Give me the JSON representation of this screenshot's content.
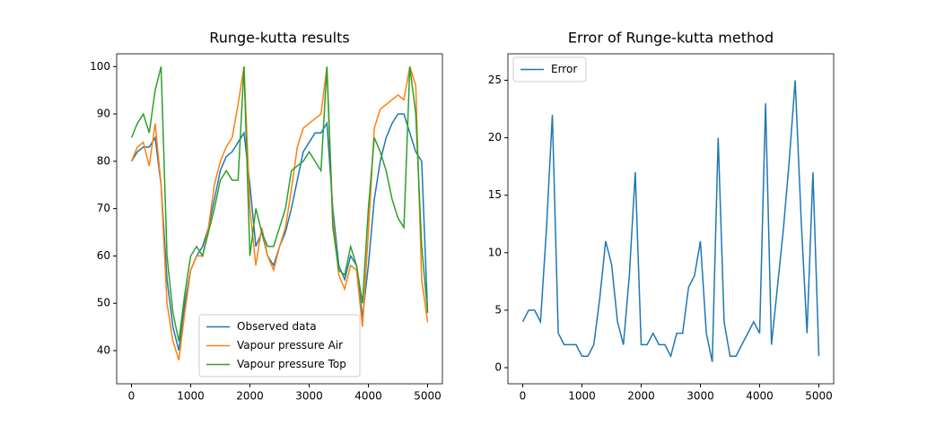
{
  "chart_data": [
    {
      "type": "line",
      "title": "Runge-kutta results",
      "x": [
        0,
        100,
        200,
        300,
        400,
        500,
        600,
        700,
        800,
        900,
        1000,
        1100,
        1200,
        1300,
        1400,
        1500,
        1600,
        1700,
        1800,
        1900,
        2000,
        2100,
        2200,
        2300,
        2400,
        2500,
        2600,
        2700,
        2800,
        2900,
        3000,
        3100,
        3200,
        3300,
        3400,
        3500,
        3600,
        3700,
        3800,
        3900,
        4000,
        4100,
        4200,
        4300,
        4400,
        4500,
        4600,
        4700,
        4800,
        4900,
        5000
      ],
      "series": [
        {
          "name": "Observed data",
          "color": "#1f77b4",
          "values": [
            80,
            82,
            83,
            83,
            85,
            75,
            55,
            45,
            40,
            50,
            57,
            60,
            62,
            66,
            72,
            78,
            81,
            82,
            84,
            86,
            75,
            62,
            65,
            60,
            58,
            62,
            65,
            70,
            76,
            82,
            84,
            86,
            86,
            88,
            70,
            58,
            55,
            60,
            58,
            47,
            58,
            72,
            80,
            85,
            88,
            90,
            90,
            86,
            82,
            80,
            48
          ]
        },
        {
          "name": "Vapour pressure Air",
          "color": "#ff7f0e",
          "values": [
            80,
            83,
            84,
            79,
            88,
            75,
            50,
            42,
            38,
            48,
            57,
            60,
            60,
            66,
            75,
            80,
            83,
            85,
            92,
            100,
            70,
            58,
            66,
            60,
            57,
            62,
            66,
            74,
            83,
            87,
            88,
            89,
            90,
            100,
            68,
            56,
            53,
            58,
            57,
            45,
            65,
            87,
            91,
            92,
            93,
            94,
            93,
            100,
            96,
            55,
            46
          ]
        },
        {
          "name": "Vapour pressure Top",
          "color": "#2ca02c",
          "values": [
            85,
            88,
            90,
            86,
            95,
            100,
            60,
            48,
            42,
            52,
            60,
            62,
            60,
            65,
            70,
            76,
            78,
            76,
            76,
            100,
            60,
            70,
            65,
            62,
            62,
            66,
            70,
            78,
            79,
            80,
            82,
            80,
            78,
            100,
            66,
            57,
            56,
            62,
            58,
            50,
            70,
            85,
            82,
            78,
            72,
            68,
            66,
            100,
            90,
            62,
            48
          ]
        }
      ],
      "xlim": [
        -250,
        5250
      ],
      "ylim": [
        33,
        102.7
      ],
      "xticks": [
        0,
        1000,
        2000,
        3000,
        4000,
        5000
      ],
      "yticks": [
        40,
        50,
        60,
        70,
        80,
        90,
        100
      ],
      "legend": "lower center"
    },
    {
      "type": "line",
      "title": "Error of Runge-kutta method",
      "x": [
        0,
        100,
        200,
        300,
        400,
        500,
        600,
        700,
        800,
        900,
        1000,
        1100,
        1200,
        1300,
        1400,
        1500,
        1600,
        1700,
        1800,
        1900,
        2000,
        2100,
        2200,
        2300,
        2400,
        2500,
        2600,
        2700,
        2800,
        2900,
        3000,
        3100,
        3200,
        3300,
        3400,
        3500,
        3600,
        3700,
        3800,
        3900,
        4000,
        4100,
        4200,
        4300,
        4400,
        4500,
        4600,
        4700,
        4800,
        4900,
        5000
      ],
      "series": [
        {
          "name": "Error",
          "color": "#1f77b4",
          "values": [
            4,
            5,
            5,
            4,
            12,
            22,
            3,
            2,
            2,
            2,
            1,
            1,
            2,
            6,
            11,
            9,
            4,
            2,
            8,
            17,
            2,
            2,
            3,
            2,
            2,
            1,
            3,
            3,
            7,
            8,
            11,
            3,
            0.5,
            20,
            4,
            1,
            1,
            2,
            3,
            4,
            3,
            23,
            2,
            7,
            12,
            18,
            25,
            13,
            3,
            17,
            1
          ]
        }
      ],
      "xlim": [
        -250,
        5250
      ],
      "ylim": [
        -1.4,
        27.3
      ],
      "xticks": [
        0,
        1000,
        2000,
        3000,
        4000,
        5000
      ],
      "yticks": [
        0,
        5,
        10,
        15,
        20,
        25
      ],
      "legend": "upper left"
    }
  ]
}
